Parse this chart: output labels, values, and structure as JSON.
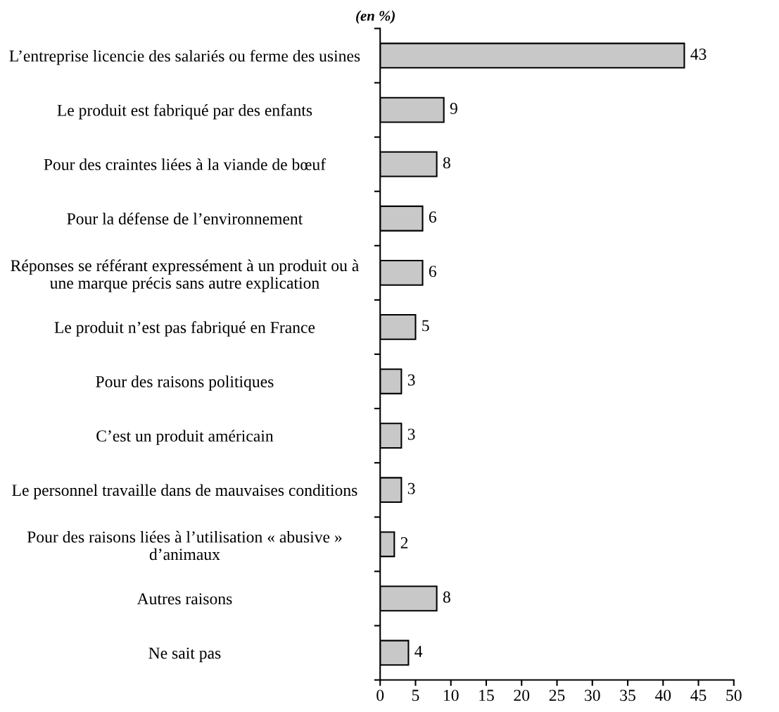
{
  "chart_data": {
    "type": "bar",
    "orientation": "horizontal",
    "title": "(en %)",
    "categories": [
      "L’entreprise licencie des salariés ou ferme des usines",
      "Le produit est fabriqué par des enfants",
      "Pour des craintes liées à la viande de bœuf",
      "Pour la défense de l’environnement",
      "Réponses se référant expressément à un produit ou à\nune marque précis sans autre explication",
      "Le produit n’est pas fabriqué en France",
      "Pour des raisons politiques",
      "C’est un produit américain",
      "Le personnel travaille dans de mauvaises conditions",
      "Pour des raisons liées à l’utilisation « abusive »\nd’animaux",
      "Autres raisons",
      "Ne sait pas"
    ],
    "values": [
      43,
      9,
      8,
      6,
      6,
      5,
      3,
      3,
      3,
      2,
      8,
      4
    ],
    "color": "#c8c8c8",
    "xlim": [
      0,
      50
    ],
    "xticks": [
      0,
      5,
      10,
      15,
      20,
      25,
      30,
      35,
      40,
      45,
      50
    ],
    "data_labels": true,
    "grid": false,
    "legend": false
  }
}
